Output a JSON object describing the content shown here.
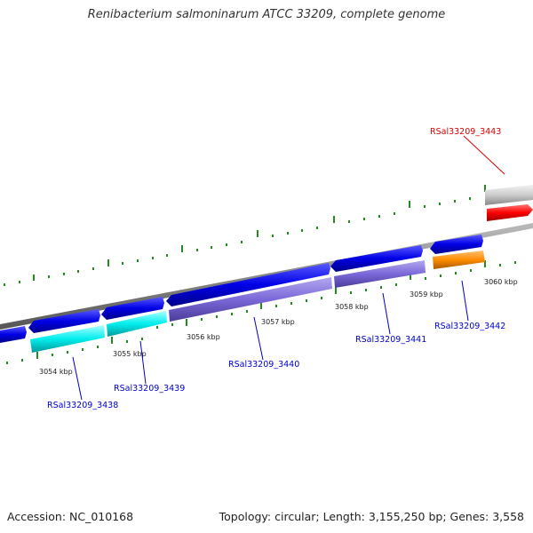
{
  "title": "Renibacterium salmoninarum ATCC 33209, complete genome",
  "footer": {
    "accession": "Accession: NC_010168",
    "topology": "Topology: circular; Length: 3,155,250 bp; Genes: 3,558"
  },
  "kbp_labels": [
    "3054 kbp",
    "3055 kbp",
    "3056 kbp",
    "3057 kbp",
    "3058 kbp",
    "3059 kbp",
    "3060 kbp"
  ],
  "genes": [
    {
      "name": "RSal33209_3438",
      "color": "#0000cc"
    },
    {
      "name": "RSal33209_3439",
      "color": "#0000cc"
    },
    {
      "name": "RSal33209_3440",
      "color": "#0000cc"
    },
    {
      "name": "RSal33209_3441",
      "color": "#0000cc"
    },
    {
      "name": "RSal33209_3442",
      "color": "#0000cc"
    },
    {
      "name": "RSal33209_3443",
      "color": "#dd0000"
    }
  ],
  "colors": {
    "forward_cds": "#0000e6",
    "cyan_feature": "#00eeee",
    "purple_feature": "#7b68d8",
    "orange_feature": "#ff8c00",
    "red_feature": "#ff0000",
    "gray_feature": "#cccccc",
    "backbone": "#888888",
    "tick": "#228b22"
  }
}
